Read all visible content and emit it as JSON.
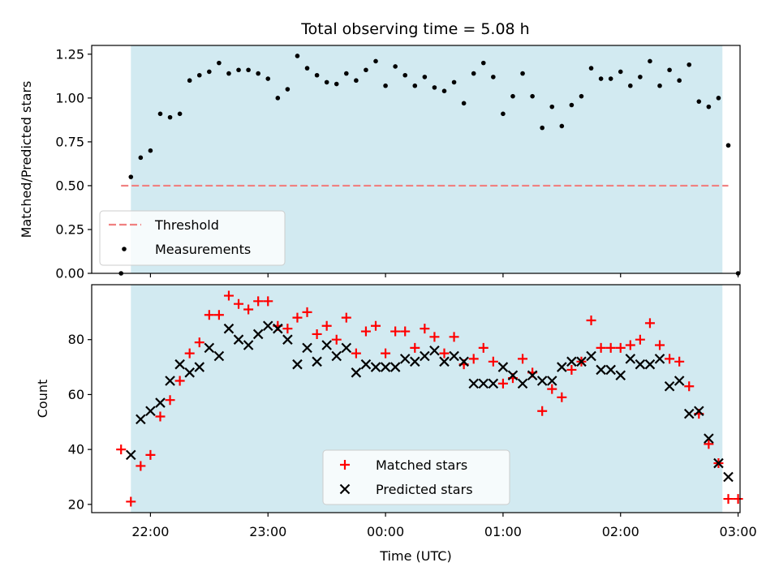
{
  "title": "Total observing time = 5.08 h",
  "colors": {
    "shade": "#add8e6",
    "threshold": "#f08080",
    "measurement": "#000000",
    "matched": "#ff0000",
    "predicted": "#000000"
  },
  "chart_data": [
    {
      "panel": "top",
      "type": "scatter",
      "ylabel": "Matched/Predicted stars",
      "ylim": [
        0,
        1.3
      ],
      "yticks": [
        "0.00",
        "0.25",
        "0.50",
        "0.75",
        "1.00",
        "1.25"
      ],
      "xlim": [
        "21:30",
        "03:01"
      ],
      "xticks": [
        "22:00",
        "23:00",
        "00:00",
        "01:00",
        "02:00",
        "03:00"
      ],
      "shaded_range": [
        "21:50",
        "02:52"
      ],
      "threshold": {
        "name": "Threshold",
        "value": 0.5,
        "x_start": "21:45",
        "x_end": "02:55"
      },
      "series": [
        {
          "name": "Measurements",
          "points": [
            [
              "21:45",
              0.0
            ],
            [
              "21:50",
              0.55
            ],
            [
              "21:55",
              0.66
            ],
            [
              "22:00",
              0.7
            ],
            [
              "22:05",
              0.91
            ],
            [
              "22:10",
              0.89
            ],
            [
              "22:15",
              0.91
            ],
            [
              "22:20",
              1.1
            ],
            [
              "22:25",
              1.13
            ],
            [
              "22:30",
              1.15
            ],
            [
              "22:35",
              1.2
            ],
            [
              "22:40",
              1.14
            ],
            [
              "22:45",
              1.16
            ],
            [
              "22:50",
              1.16
            ],
            [
              "22:55",
              1.14
            ],
            [
              "23:00",
              1.11
            ],
            [
              "23:05",
              1.0
            ],
            [
              "23:10",
              1.05
            ],
            [
              "23:15",
              1.24
            ],
            [
              "23:20",
              1.17
            ],
            [
              "23:25",
              1.13
            ],
            [
              "23:30",
              1.09
            ],
            [
              "23:35",
              1.08
            ],
            [
              "23:40",
              1.14
            ],
            [
              "23:45",
              1.1
            ],
            [
              "23:50",
              1.16
            ],
            [
              "23:55",
              1.21
            ],
            [
              "00:00",
              1.07
            ],
            [
              "00:05",
              1.18
            ],
            [
              "00:10",
              1.13
            ],
            [
              "00:15",
              1.07
            ],
            [
              "00:20",
              1.12
            ],
            [
              "00:25",
              1.06
            ],
            [
              "00:30",
              1.04
            ],
            [
              "00:35",
              1.09
            ],
            [
              "00:40",
              0.97
            ],
            [
              "00:45",
              1.14
            ],
            [
              "00:50",
              1.2
            ],
            [
              "00:55",
              1.12
            ],
            [
              "01:00",
              0.91
            ],
            [
              "01:05",
              1.01
            ],
            [
              "01:10",
              1.14
            ],
            [
              "01:15",
              1.01
            ],
            [
              "01:20",
              0.83
            ],
            [
              "01:25",
              0.95
            ],
            [
              "01:30",
              0.84
            ],
            [
              "01:35",
              0.96
            ],
            [
              "01:40",
              1.01
            ],
            [
              "01:45",
              1.17
            ],
            [
              "01:50",
              1.11
            ],
            [
              "01:55",
              1.11
            ],
            [
              "02:00",
              1.15
            ],
            [
              "02:05",
              1.07
            ],
            [
              "02:10",
              1.12
            ],
            [
              "02:15",
              1.21
            ],
            [
              "02:20",
              1.07
            ],
            [
              "02:25",
              1.16
            ],
            [
              "02:30",
              1.1
            ],
            [
              "02:35",
              1.19
            ],
            [
              "02:40",
              0.98
            ],
            [
              "02:45",
              0.95
            ],
            [
              "02:50",
              1.0
            ],
            [
              "02:55",
              0.73
            ],
            [
              "03:00",
              0.0
            ]
          ]
        }
      ],
      "legend": {
        "position": "lower left",
        "entries": [
          "Threshold",
          "Measurements"
        ]
      }
    },
    {
      "panel": "bottom",
      "type": "scatter",
      "xlabel": "Time (UTC)",
      "ylabel": "Count",
      "ylim": [
        17,
        100
      ],
      "yticks": [
        "20",
        "40",
        "60",
        "80"
      ],
      "xlim": [
        "21:30",
        "03:01"
      ],
      "xticks": [
        "22:00",
        "23:00",
        "00:00",
        "01:00",
        "02:00",
        "03:00"
      ],
      "shaded_range": [
        "21:50",
        "02:52"
      ],
      "series": [
        {
          "name": "Matched stars",
          "marker": "plus",
          "points": [
            [
              "21:45",
              40
            ],
            [
              "21:50",
              21
            ],
            [
              "21:55",
              34
            ],
            [
              "22:00",
              38
            ],
            [
              "22:05",
              52
            ],
            [
              "22:10",
              58
            ],
            [
              "22:15",
              65
            ],
            [
              "22:20",
              75
            ],
            [
              "22:25",
              79
            ],
            [
              "22:30",
              89
            ],
            [
              "22:35",
              89
            ],
            [
              "22:40",
              96
            ],
            [
              "22:45",
              93
            ],
            [
              "22:50",
              91
            ],
            [
              "22:55",
              94
            ],
            [
              "23:00",
              94
            ],
            [
              "23:05",
              85
            ],
            [
              "23:10",
              84
            ],
            [
              "23:15",
              88
            ],
            [
              "23:20",
              90
            ],
            [
              "23:25",
              82
            ],
            [
              "23:30",
              85
            ],
            [
              "23:35",
              80
            ],
            [
              "23:40",
              88
            ],
            [
              "23:45",
              75
            ],
            [
              "23:50",
              83
            ],
            [
              "23:55",
              85
            ],
            [
              "00:00",
              75
            ],
            [
              "00:05",
              83
            ],
            [
              "00:10",
              83
            ],
            [
              "00:15",
              77
            ],
            [
              "00:20",
              84
            ],
            [
              "00:25",
              81
            ],
            [
              "00:30",
              75
            ],
            [
              "00:35",
              81
            ],
            [
              "00:40",
              71
            ],
            [
              "00:45",
              73
            ],
            [
              "00:50",
              77
            ],
            [
              "00:55",
              72
            ],
            [
              "01:00",
              64
            ],
            [
              "01:05",
              66
            ],
            [
              "01:10",
              73
            ],
            [
              "01:15",
              68
            ],
            [
              "01:20",
              54
            ],
            [
              "01:25",
              62
            ],
            [
              "01:30",
              59
            ],
            [
              "01:35",
              69
            ],
            [
              "01:40",
              72
            ],
            [
              "01:45",
              87
            ],
            [
              "01:50",
              77
            ],
            [
              "01:55",
              77
            ],
            [
              "02:00",
              77
            ],
            [
              "02:05",
              78
            ],
            [
              "02:10",
              80
            ],
            [
              "02:15",
              86
            ],
            [
              "02:20",
              78
            ],
            [
              "02:25",
              73
            ],
            [
              "02:30",
              72
            ],
            [
              "02:35",
              63
            ],
            [
              "02:40",
              53
            ],
            [
              "02:45",
              42
            ],
            [
              "02:50",
              35
            ],
            [
              "02:55",
              22
            ],
            [
              "03:00",
              22
            ]
          ]
        },
        {
          "name": "Predicted stars",
          "marker": "x",
          "points": [
            [
              "21:50",
              38
            ],
            [
              "21:55",
              51
            ],
            [
              "22:00",
              54
            ],
            [
              "22:05",
              57
            ],
            [
              "22:10",
              65
            ],
            [
              "22:15",
              71
            ],
            [
              "22:20",
              68
            ],
            [
              "22:25",
              70
            ],
            [
              "22:30",
              77
            ],
            [
              "22:35",
              74
            ],
            [
              "22:40",
              84
            ],
            [
              "22:45",
              80
            ],
            [
              "22:50",
              78
            ],
            [
              "22:55",
              82
            ],
            [
              "23:00",
              85
            ],
            [
              "23:05",
              84
            ],
            [
              "23:10",
              80
            ],
            [
              "23:15",
              71
            ],
            [
              "23:20",
              77
            ],
            [
              "23:25",
              72
            ],
            [
              "23:30",
              78
            ],
            [
              "23:35",
              74
            ],
            [
              "23:40",
              77
            ],
            [
              "23:45",
              68
            ],
            [
              "23:50",
              71
            ],
            [
              "23:55",
              70
            ],
            [
              "00:00",
              70
            ],
            [
              "00:05",
              70
            ],
            [
              "00:10",
              73
            ],
            [
              "00:15",
              72
            ],
            [
              "00:20",
              74
            ],
            [
              "00:25",
              76
            ],
            [
              "00:30",
              72
            ],
            [
              "00:35",
              74
            ],
            [
              "00:40",
              72
            ],
            [
              "00:45",
              64
            ],
            [
              "00:50",
              64
            ],
            [
              "00:55",
              64
            ],
            [
              "01:00",
              70
            ],
            [
              "01:05",
              67
            ],
            [
              "01:10",
              64
            ],
            [
              "01:15",
              67
            ],
            [
              "01:20",
              65
            ],
            [
              "01:25",
              65
            ],
            [
              "01:30",
              70
            ],
            [
              "01:35",
              72
            ],
            [
              "01:40",
              72
            ],
            [
              "01:45",
              74
            ],
            [
              "01:50",
              69
            ],
            [
              "01:55",
              69
            ],
            [
              "02:00",
              67
            ],
            [
              "02:05",
              73
            ],
            [
              "02:10",
              71
            ],
            [
              "02:15",
              71
            ],
            [
              "02:20",
              73
            ],
            [
              "02:25",
              63
            ],
            [
              "02:30",
              65
            ],
            [
              "02:35",
              53
            ],
            [
              "02:40",
              54
            ],
            [
              "02:45",
              44
            ],
            [
              "02:50",
              35
            ],
            [
              "02:55",
              30
            ]
          ]
        }
      ],
      "legend": {
        "position": "lower center",
        "entries": [
          "Matched stars",
          "Predicted stars"
        ]
      }
    }
  ]
}
